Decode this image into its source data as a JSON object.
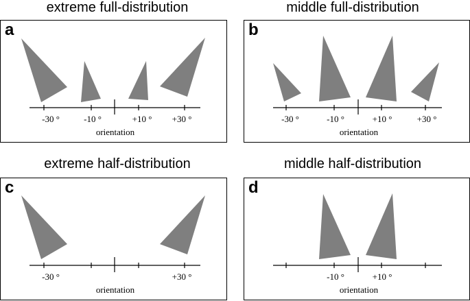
{
  "colors": {
    "shape": "#7f7f7f",
    "axis": "#000000",
    "border": "#000000"
  },
  "panels": [
    {
      "letter": "a",
      "title": "extreme full-distribution",
      "axis_label": "orientation",
      "ticks": [
        {
          "value": -30,
          "label": "-30 °"
        },
        {
          "value": -10,
          "label": "-10 °"
        },
        {
          "value": 10,
          "label": "+10 °"
        },
        {
          "value": 30,
          "label": "+30 °"
        }
      ],
      "stimuli_orientations_deg": [
        -30,
        -10,
        10,
        30
      ]
    },
    {
      "letter": "b",
      "title": "middle full-distribution",
      "axis_label": "orientation",
      "ticks": [
        {
          "value": -30,
          "label": "-30 °"
        },
        {
          "value": -10,
          "label": "-10 °"
        },
        {
          "value": 10,
          "label": "+10 °"
        },
        {
          "value": 30,
          "label": "+30 °"
        }
      ],
      "stimuli_orientations_deg": [
        -30,
        -10,
        10,
        30
      ]
    },
    {
      "letter": "c",
      "title": "extreme half-distribution",
      "axis_label": "orientation",
      "ticks": [
        {
          "value": -30,
          "label": "-30 °"
        },
        {
          "value": -10,
          "label": ""
        },
        {
          "value": 10,
          "label": ""
        },
        {
          "value": 30,
          "label": "+30 °"
        }
      ],
      "stimuli_orientations_deg": [
        -30,
        30
      ]
    },
    {
      "letter": "d",
      "title": "middle half-distribution",
      "axis_label": "orientation",
      "ticks": [
        {
          "value": -30,
          "label": ""
        },
        {
          "value": -10,
          "label": "-10 °"
        },
        {
          "value": 10,
          "label": "+10 °"
        },
        {
          "value": 30,
          "label": ""
        }
      ],
      "stimuli_orientations_deg": [
        -10,
        10
      ]
    }
  ]
}
